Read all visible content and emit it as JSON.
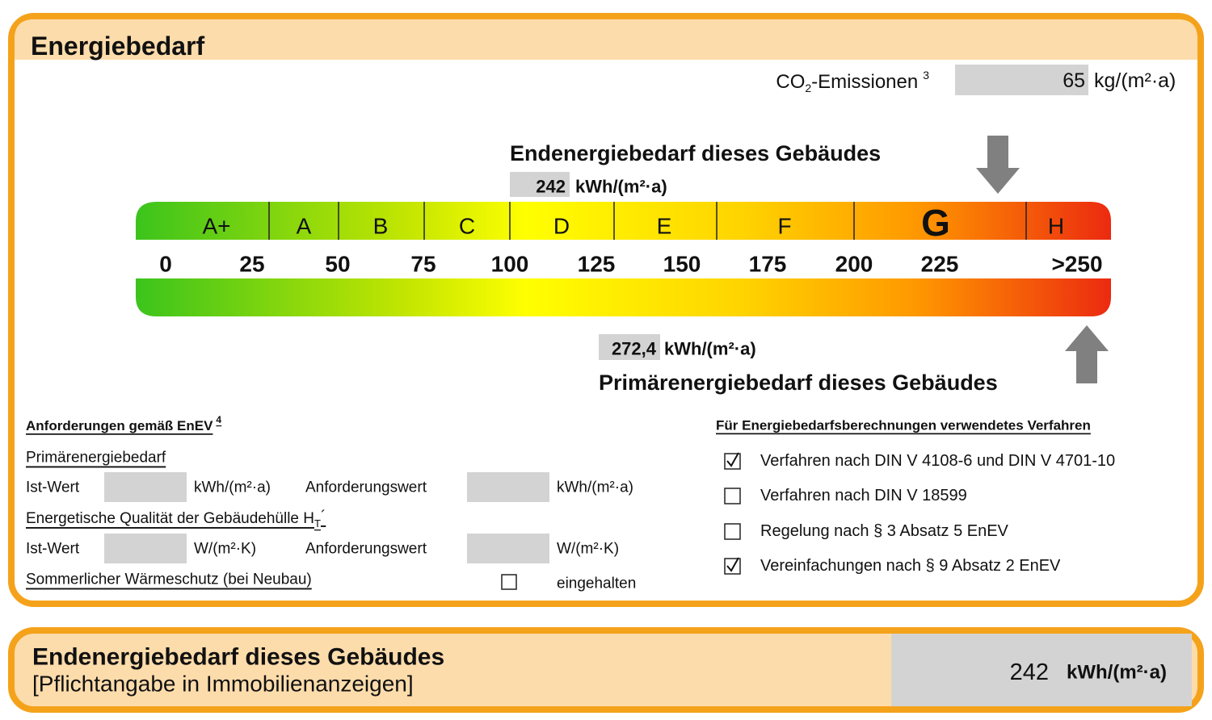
{
  "header": {
    "title": "Energiebedarf"
  },
  "co2": {
    "label": "CO",
    "subscript": "2",
    "label_suffix": "-Emissionen",
    "footnote": "3",
    "value": "65",
    "unit": "kg/(m²·a)"
  },
  "end_energy": {
    "title": "Endenergiebedarf dieses Gebäudes",
    "value": "242",
    "unit": "kWh/(m²·a)"
  },
  "primary_energy": {
    "title": "Primärenergiebedarf dieses Gebäudes",
    "value": "272,4",
    "unit": "kWh/(m²·a)"
  },
  "scale": {
    "classes": [
      "A+",
      "A",
      "B",
      "C",
      "D",
      "E",
      "F",
      "G",
      "H"
    ],
    "ticks": [
      "0",
      "25",
      "50",
      "75",
      "100",
      "125",
      "150",
      "175",
      "200",
      "225",
      ">250"
    ]
  },
  "requirements": {
    "title": "Anforderungen gemäß EnEV",
    "footnote": "4",
    "primary": {
      "title": "Primärenergiebedarf",
      "actual_label": "Ist-Wert",
      "actual_unit": "kWh/(m²·a)",
      "required_label": "Anforderungswert",
      "required_unit": "kWh/(m²·a)"
    },
    "envelope": {
      "title": "Energetische Qualität der Gebäudehülle H",
      "subscript": "T",
      "suffix": "´",
      "actual_label": "Ist-Wert",
      "actual_unit": "W/(m²·K)",
      "required_label": "Anforderungswert",
      "required_unit": "W/(m²·K)"
    },
    "summer": {
      "title": "Sommerlicher Wärmeschutz (bei Neubau)",
      "checked": false,
      "label": "eingehalten"
    }
  },
  "methods": {
    "title": "Für Energiebedarfsberechnungen verwendetes Verfahren",
    "items": [
      {
        "label": "Verfahren nach DIN V 4108-6 und DIN V 4701-10",
        "checked": true
      },
      {
        "label": "Verfahren nach DIN V 18599",
        "checked": false
      },
      {
        "label": "Regelung nach § 3 Absatz 5 EnEV",
        "checked": false
      },
      {
        "label": "Vereinfachungen nach § 9 Absatz 2 EnEV",
        "checked": true
      }
    ]
  },
  "footer": {
    "title": "Endenergiebedarf dieses Gebäudes",
    "subtitle": "[Pflichtangabe in Immobilienanzeigen]",
    "value": "242",
    "unit": "kWh/(m²·a)"
  }
}
